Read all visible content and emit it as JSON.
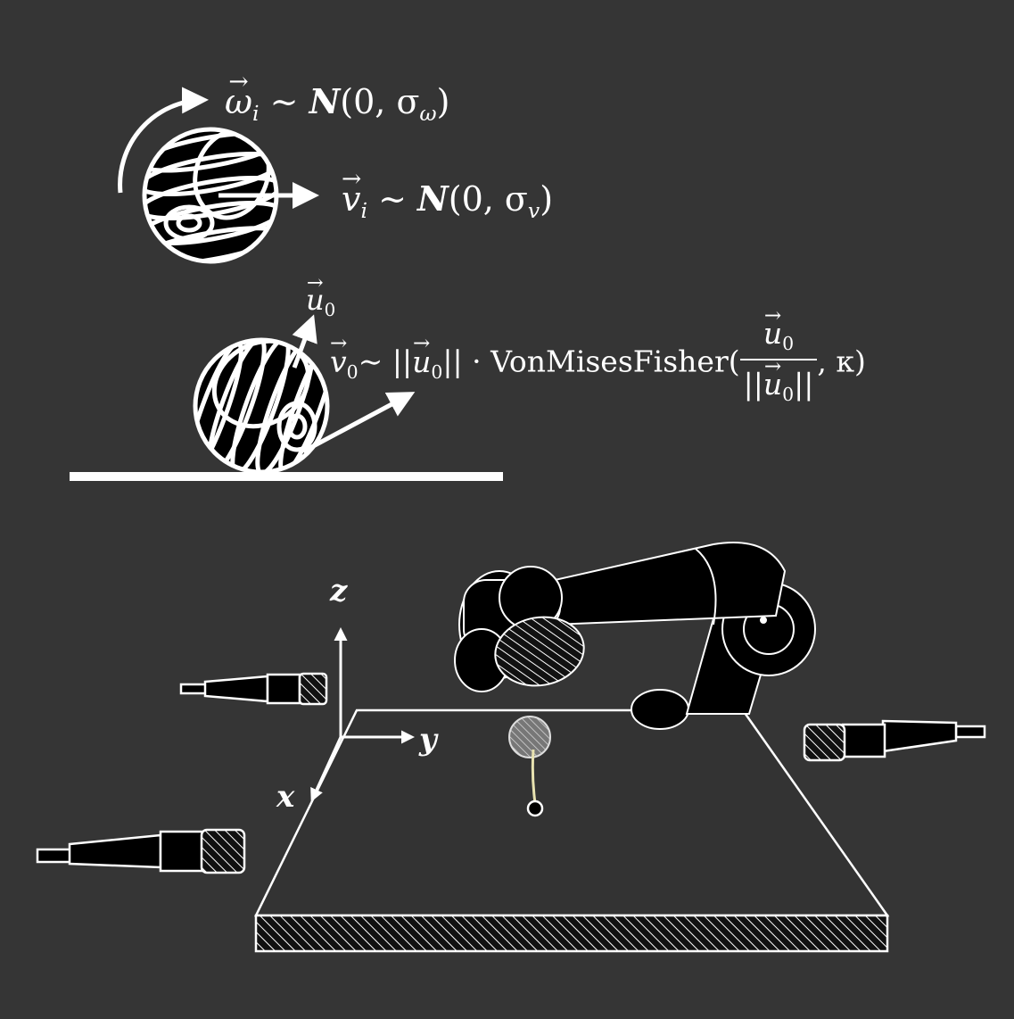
{
  "equations": {
    "omega": {
      "symbol": "ω",
      "sub": "i",
      "rel": "∼",
      "dist": "N",
      "args_open": "(0, σ",
      "args_sub": "ω",
      "args_close": ")"
    },
    "velocity": {
      "symbol": "v",
      "sub": "i",
      "rel": "∼",
      "dist": "N",
      "args_open": "(0, σ",
      "args_sub": "v",
      "args_close": ")"
    },
    "u0": {
      "symbol": "u",
      "sub": "0"
    },
    "v0": {
      "symbol": "v",
      "sub": "0",
      "rel": "∼",
      "norm_left": "||",
      "norm_sym": "u",
      "norm_sub": "0",
      "norm_right": "||",
      "dot": "·",
      "func": "VonMisesFisher(",
      "frac_num_sym": "u",
      "frac_num_sub": "0",
      "frac_den_left": "||",
      "frac_den_sym": "u",
      "frac_den_sub": "0",
      "frac_den_right": "||",
      "tail": ", κ)"
    }
  },
  "axes": {
    "x": "x",
    "y": "y",
    "z": "z"
  },
  "colors": {
    "background": "#353535",
    "foreground": "#ffffff",
    "solid": "#000000"
  },
  "icons": [
    "spinning-ball-icon",
    "rolling-ball-icon",
    "robot-arm-icon",
    "microphone-icon",
    "table-icon"
  ]
}
